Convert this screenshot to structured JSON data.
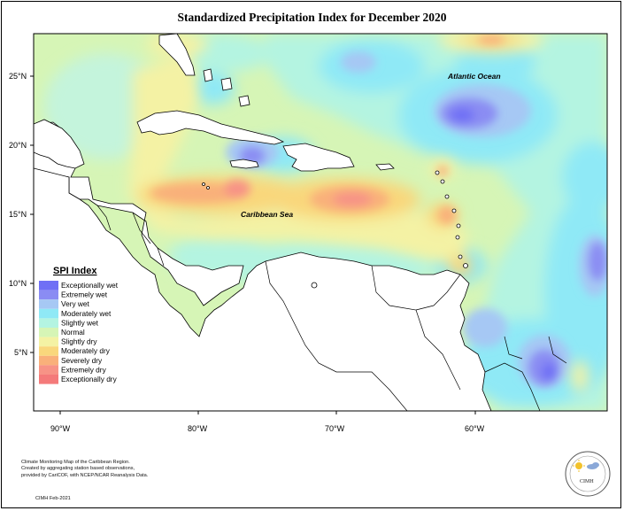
{
  "title": "Standardized Precipitation Index for December 2020",
  "map": {
    "lat_ticks": [
      "25°N",
      "20°N",
      "15°N",
      "10°N",
      "5°N"
    ],
    "lon_ticks": [
      "90°W",
      "80°W",
      "70°W",
      "60°W"
    ],
    "labels": {
      "atlantic": "Atlantic Ocean",
      "caribbean": "Caribbean Sea"
    }
  },
  "legend": {
    "title": "SPI Index",
    "items": [
      {
        "label": "Exceptionally wet",
        "color": "#6f6ff5"
      },
      {
        "label": "Extremely wet",
        "color": "#8a8cf3"
      },
      {
        "label": "Very wet",
        "color": "#a6c8f4"
      },
      {
        "label": "Moderately wet",
        "color": "#8fe9f6"
      },
      {
        "label": "Slightly wet",
        "color": "#b4f4e1"
      },
      {
        "label": "Normal",
        "color": "#d6f5b6"
      },
      {
        "label": "Slightly dry",
        "color": "#f4f2a4"
      },
      {
        "label": "Moderately dry",
        "color": "#f9d77c"
      },
      {
        "label": "Severely dry",
        "color": "#f9b07a"
      },
      {
        "label": "Extremely dry",
        "color": "#f79386"
      },
      {
        "label": "Exceptionally dry",
        "color": "#f47a7a"
      }
    ]
  },
  "footer": {
    "line1": "Climate Monitoring Map of the Caribbean Region.",
    "line2": "Created by aggregating station based observations,",
    "line3": "provided by CariCOF, with NCEP/NCAR Reanalysis Data.",
    "date": "CIMH Feb-2021"
  },
  "logo": {
    "text": "CIMH"
  }
}
